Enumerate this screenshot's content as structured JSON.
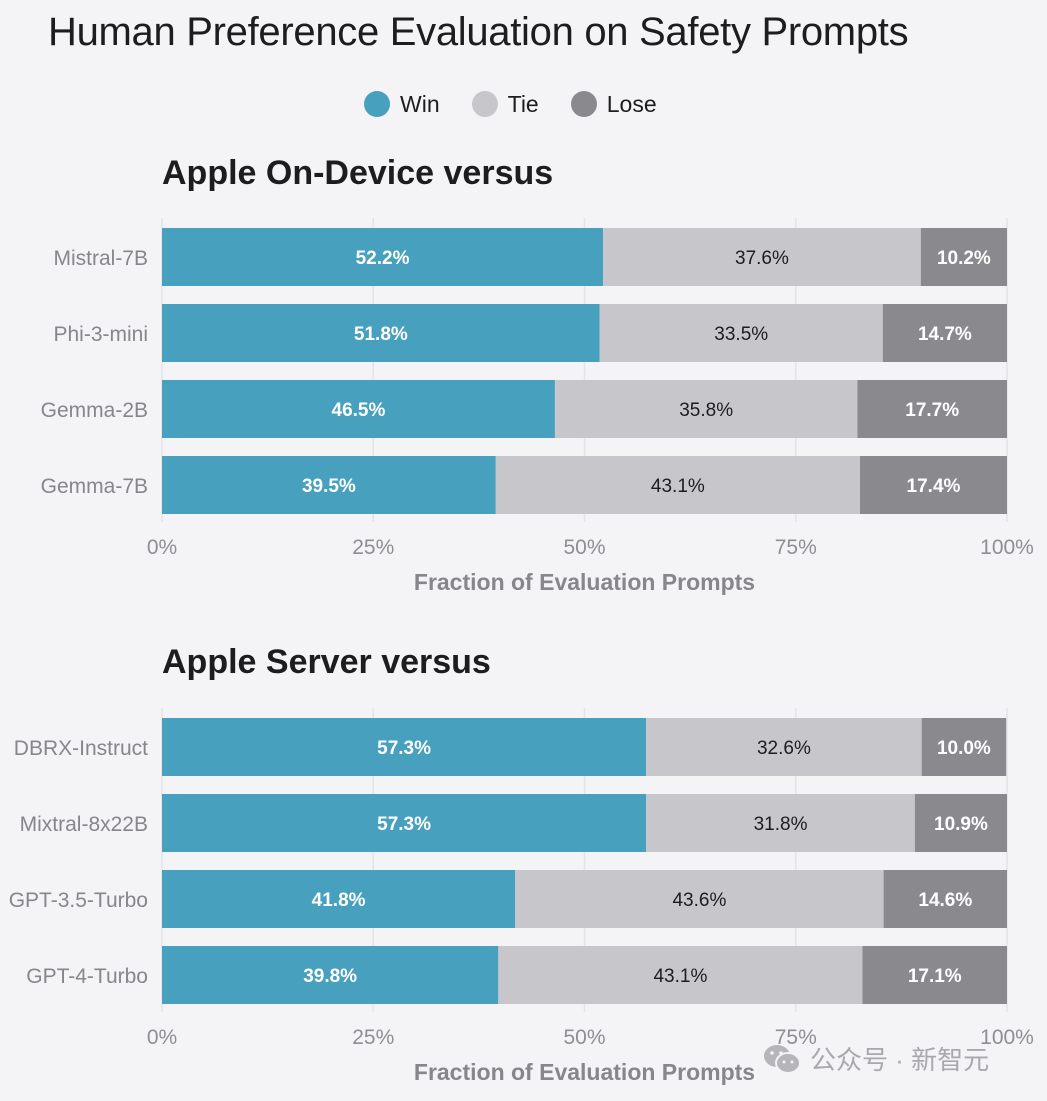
{
  "title": "Human Preference Evaluation on Safety Prompts",
  "legend": [
    {
      "label": "Win",
      "color": "#48a0bf"
    },
    {
      "label": "Tie",
      "color": "#c7c7cb"
    },
    {
      "label": "Lose",
      "color": "#8a898e"
    }
  ],
  "watermark": "公众号 · 新智元",
  "chart_data": [
    {
      "type": "bar",
      "orientation": "horizontal",
      "stacked": true,
      "title": "Apple On-Device versus",
      "xlabel": "Fraction of Evaluation Prompts",
      "ylabel": "",
      "xlim": [
        0,
        100
      ],
      "xticks": [
        "0%",
        "25%",
        "50%",
        "75%",
        "100%"
      ],
      "grid": true,
      "categories": [
        "Mistral-7B",
        "Phi-3-mini",
        "Gemma-2B",
        "Gemma-7B"
      ],
      "series": [
        {
          "name": "Win",
          "values": [
            52.2,
            51.8,
            46.5,
            39.5
          ],
          "labels": [
            "52.2%",
            "51.8%",
            "46.5%",
            "39.5%"
          ]
        },
        {
          "name": "Tie",
          "values": [
            37.6,
            33.5,
            35.8,
            43.1
          ],
          "labels": [
            "37.6%",
            "33.5%",
            "35.8%",
            "43.1%"
          ]
        },
        {
          "name": "Lose",
          "values": [
            10.2,
            14.7,
            17.7,
            17.4
          ],
          "labels": [
            "10.2%",
            "14.7%",
            "17.7%",
            "17.4%"
          ]
        }
      ]
    },
    {
      "type": "bar",
      "orientation": "horizontal",
      "stacked": true,
      "title": "Apple Server versus",
      "xlabel": "Fraction of Evaluation Prompts",
      "ylabel": "",
      "xlim": [
        0,
        100
      ],
      "xticks": [
        "0%",
        "25%",
        "50%",
        "75%",
        "100%"
      ],
      "grid": true,
      "categories": [
        "DBRX-Instruct",
        "Mixtral-8x22B",
        "GPT-3.5-Turbo",
        "GPT-4-Turbo"
      ],
      "series": [
        {
          "name": "Win",
          "values": [
            57.3,
            57.3,
            41.8,
            39.8
          ],
          "labels": [
            "57.3%",
            "57.3%",
            "41.8%",
            "39.8%"
          ]
        },
        {
          "name": "Tie",
          "values": [
            32.6,
            31.8,
            43.6,
            43.1
          ],
          "labels": [
            "32.6%",
            "31.8%",
            "43.6%",
            "43.1%"
          ]
        },
        {
          "name": "Lose",
          "values": [
            10.0,
            10.9,
            14.6,
            17.1
          ],
          "labels": [
            "10.0%",
            "10.9%",
            "14.6%",
            "17.1%"
          ]
        }
      ]
    }
  ]
}
